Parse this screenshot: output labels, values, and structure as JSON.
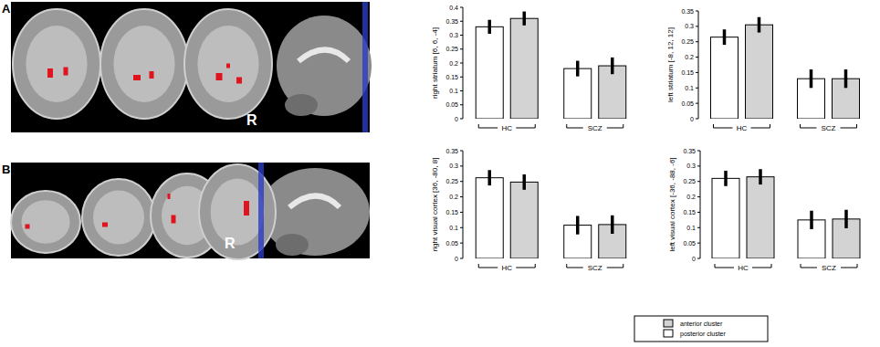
{
  "chart_data": [
    {
      "type": "bar",
      "y_label": "right striatum [6, 6, -4]",
      "categories": [
        "HC",
        "SCZ"
      ],
      "series": [
        {
          "name": "posterior cluster",
          "color": "#ffffff",
          "values": [
            0.33,
            0.18
          ],
          "errors": [
            0.025,
            0.028
          ]
        },
        {
          "name": "anterior cluster",
          "color": "#d3d3d3",
          "values": [
            0.36,
            0.19
          ],
          "errors": [
            0.025,
            0.03
          ]
        }
      ],
      "ylim": [
        0,
        0.4
      ],
      "yticks": [
        0,
        0.05,
        0.1,
        0.15,
        0.2,
        0.25,
        0.3,
        0.35,
        0.4
      ],
      "legend": "bottom"
    },
    {
      "type": "bar",
      "y_label": "left striatum [-8, 12, 12]",
      "categories": [
        "HC",
        "SCZ"
      ],
      "series": [
        {
          "name": "posterior cluster",
          "color": "#ffffff",
          "values": [
            0.265,
            0.13
          ],
          "errors": [
            0.025,
            0.03
          ]
        },
        {
          "name": "anterior cluster",
          "color": "#d3d3d3",
          "values": [
            0.305,
            0.13
          ],
          "errors": [
            0.025,
            0.03
          ]
        }
      ],
      "ylim": [
        0,
        0.35
      ],
      "yticks": [
        0,
        0.05,
        0.1,
        0.15,
        0.2,
        0.25,
        0.3,
        0.35
      ]
    },
    {
      "type": "bar",
      "y_label": "right visual cortex [36, -80, 8]",
      "categories": [
        "HC",
        "SCZ"
      ],
      "series": [
        {
          "name": "posterior cluster",
          "color": "#ffffff",
          "values": [
            0.262,
            0.108
          ],
          "errors": [
            0.025,
            0.03
          ]
        },
        {
          "name": "anterior cluster",
          "color": "#d3d3d3",
          "values": [
            0.248,
            0.11
          ],
          "errors": [
            0.025,
            0.03
          ]
        }
      ],
      "ylim": [
        0,
        0.35
      ],
      "yticks": [
        0,
        0.05,
        0.1,
        0.15,
        0.2,
        0.25,
        0.3,
        0.35
      ]
    },
    {
      "type": "bar",
      "y_label": "left visual cortex [-36, -88, -6]",
      "categories": [
        "HC",
        "SCZ"
      ],
      "series": [
        {
          "name": "posterior cluster",
          "color": "#ffffff",
          "values": [
            0.26,
            0.125
          ],
          "errors": [
            0.025,
            0.03
          ]
        },
        {
          "name": "anterior cluster",
          "color": "#d3d3d3",
          "values": [
            0.265,
            0.128
          ],
          "errors": [
            0.025,
            0.03
          ]
        }
      ],
      "ylim": [
        0,
        0.35
      ],
      "yticks": [
        0,
        0.05,
        0.1,
        0.15,
        0.2,
        0.25,
        0.3,
        0.35
      ]
    }
  ],
  "figure": {
    "panel_labels": [
      "A",
      "B"
    ],
    "side_labels": [
      "R",
      "R"
    ]
  }
}
